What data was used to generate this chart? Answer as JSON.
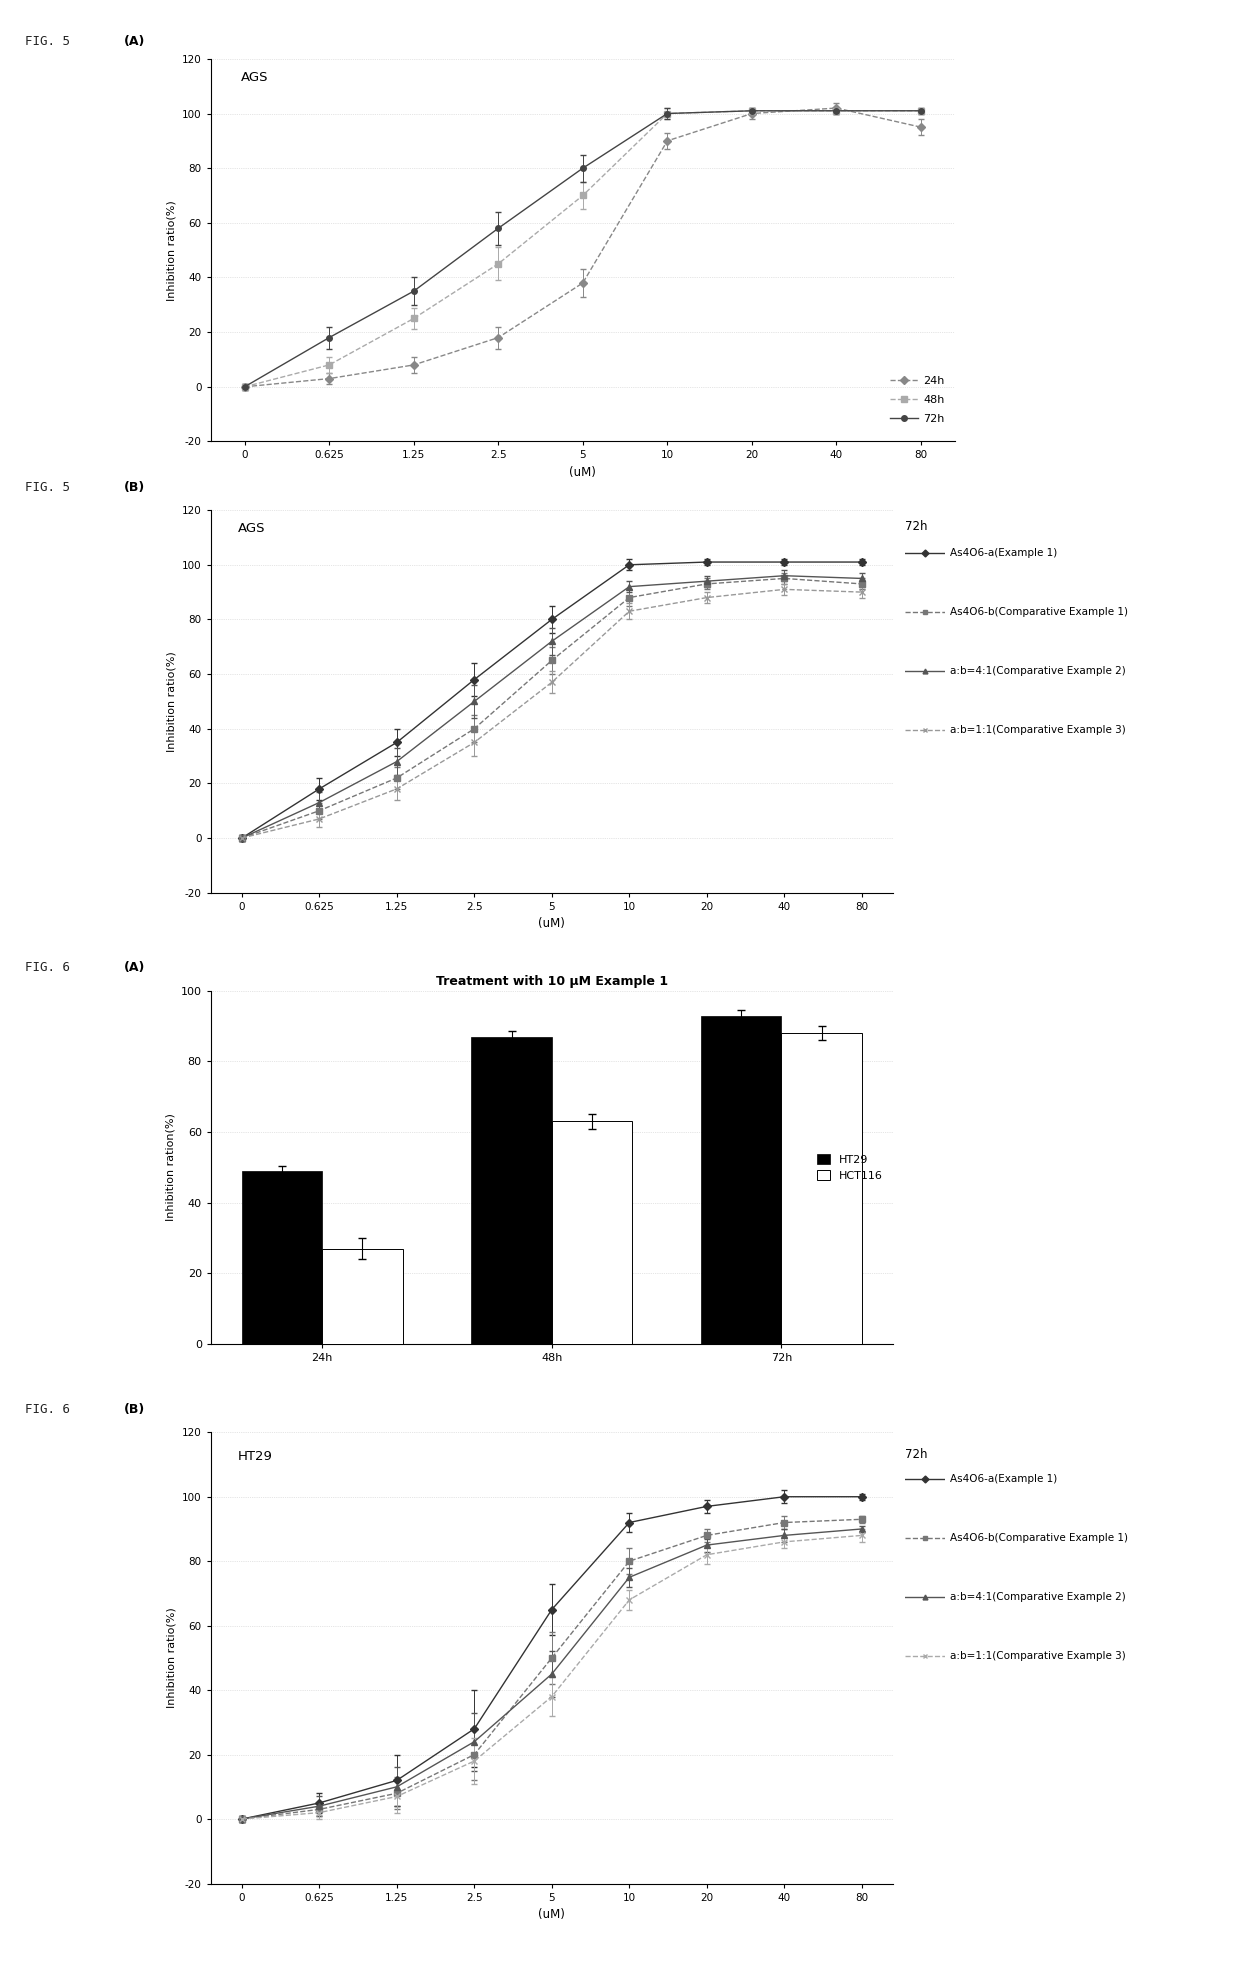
{
  "fig5a": {
    "title": "AGS",
    "xlabel": "(uM)",
    "ylabel": "Inhibition ratio(%)",
    "x_labels": [
      "0",
      "0.625",
      "1.25",
      "2.5",
      "5",
      "10",
      "20",
      "40",
      "80"
    ],
    "ylim": [
      -20,
      120
    ],
    "yticks": [
      -20,
      0,
      20,
      40,
      60,
      80,
      100,
      120
    ],
    "series": {
      "24h": {
        "y": [
          0,
          3,
          8,
          18,
          38,
          90,
          100,
          102,
          95
        ],
        "yerr": [
          1,
          2,
          3,
          4,
          5,
          3,
          2,
          2,
          3
        ],
        "color": "#888888",
        "marker": "D",
        "linestyle": "--",
        "ms": 4
      },
      "48h": {
        "y": [
          0,
          8,
          25,
          45,
          70,
          100,
          101,
          101,
          101
        ],
        "yerr": [
          1,
          3,
          4,
          6,
          5,
          2,
          1,
          1,
          1
        ],
        "color": "#aaaaaa",
        "marker": "s",
        "linestyle": "--",
        "ms": 4
      },
      "72h": {
        "y": [
          0,
          18,
          35,
          58,
          80,
          100,
          101,
          101,
          101
        ],
        "yerr": [
          1,
          4,
          5,
          6,
          5,
          2,
          1,
          1,
          1
        ],
        "color": "#444444",
        "marker": "o",
        "linestyle": "-",
        "ms": 4
      }
    }
  },
  "fig5b": {
    "title": "AGS",
    "subtitle": "72h",
    "xlabel": "(uM)",
    "ylabel": "Inhibition ratio(%)",
    "x_labels": [
      "0",
      "0.625",
      "1.25",
      "2.5",
      "5",
      "10",
      "20",
      "40",
      "80"
    ],
    "ylim": [
      -20,
      120
    ],
    "yticks": [
      -20,
      0,
      20,
      40,
      60,
      80,
      100,
      120
    ],
    "series": {
      "As4O6-a(Example 1)": {
        "y": [
          0,
          18,
          35,
          58,
          80,
          100,
          101,
          101,
          101
        ],
        "yerr": [
          1,
          4,
          5,
          6,
          5,
          2,
          1,
          1,
          1
        ],
        "color": "#333333",
        "marker": "D",
        "linestyle": "-",
        "ms": 4
      },
      "As4O6-b(Comparative Example 1)": {
        "y": [
          0,
          10,
          22,
          40,
          65,
          88,
          93,
          95,
          93
        ],
        "yerr": [
          1,
          3,
          4,
          5,
          5,
          3,
          2,
          2,
          2
        ],
        "color": "#777777",
        "marker": "s",
        "linestyle": "--",
        "ms": 4
      },
      "a:b=4:1(Comparative Example 2)": {
        "y": [
          0,
          13,
          28,
          50,
          72,
          92,
          94,
          96,
          95
        ],
        "yerr": [
          1,
          4,
          5,
          6,
          5,
          2,
          2,
          2,
          2
        ],
        "color": "#555555",
        "marker": "^",
        "linestyle": "-",
        "ms": 4
      },
      "a:b=1:1(Comparative Example 3)": {
        "y": [
          0,
          7,
          18,
          35,
          57,
          83,
          88,
          91,
          90
        ],
        "yerr": [
          1,
          3,
          4,
          5,
          4,
          3,
          2,
          2,
          2
        ],
        "color": "#999999",
        "marker": "x",
        "linestyle": "--",
        "ms": 4
      }
    }
  },
  "fig6a": {
    "title": "Treatment with 10 μM Example 1",
    "xlabel": "",
    "ylabel": "Inhibition ration(%)",
    "categories": [
      "24h",
      "48h",
      "72h"
    ],
    "ht29": [
      49,
      87,
      93
    ],
    "ht29_err": [
      1.5,
      1.5,
      1.5
    ],
    "hct116": [
      27,
      63,
      88
    ],
    "hct116_err": [
      3,
      2,
      2
    ],
    "ylim": [
      0,
      100
    ],
    "yticks": [
      0,
      20,
      40,
      60,
      80,
      100
    ],
    "ht29_color": "#000000",
    "hct116_color": "#ffffff",
    "bar_width": 0.35
  },
  "fig6b": {
    "title": "HT29",
    "subtitle": "72h",
    "xlabel": "(uM)",
    "ylabel": "Inhibition ratio(%)",
    "x_labels": [
      "0",
      "0.625",
      "1.25",
      "2.5",
      "5",
      "10",
      "20",
      "40",
      "80"
    ],
    "ylim": [
      -20,
      120
    ],
    "yticks": [
      -20,
      0,
      20,
      40,
      60,
      80,
      100,
      120
    ],
    "series": {
      "As4O6-a(Example 1)": {
        "y": [
          0,
          5,
          12,
          28,
          65,
          92,
          97,
          100,
          100
        ],
        "yerr": [
          1,
          3,
          8,
          12,
          8,
          3,
          2,
          2,
          1
        ],
        "color": "#333333",
        "marker": "D",
        "linestyle": "-",
        "ms": 4
      },
      "As4O6-b(Comparative Example 1)": {
        "y": [
          0,
          3,
          8,
          20,
          50,
          80,
          88,
          92,
          93
        ],
        "yerr": [
          1,
          2,
          5,
          8,
          8,
          4,
          2,
          2,
          1
        ],
        "color": "#777777",
        "marker": "s",
        "linestyle": "--",
        "ms": 4
      },
      "a:b=4:1(Comparative Example 2)": {
        "y": [
          0,
          4,
          10,
          24,
          45,
          75,
          85,
          88,
          90
        ],
        "yerr": [
          1,
          3,
          6,
          9,
          7,
          3,
          2,
          2,
          1
        ],
        "color": "#555555",
        "marker": "^",
        "linestyle": "-",
        "ms": 4
      },
      "a:b=1:1(Comparative Example 3)": {
        "y": [
          0,
          2,
          7,
          18,
          38,
          68,
          82,
          86,
          88
        ],
        "yerr": [
          1,
          2,
          5,
          7,
          6,
          3,
          3,
          2,
          2
        ],
        "color": "#aaaaaa",
        "marker": "x",
        "linestyle": "--",
        "ms": 4
      }
    }
  },
  "fig_bg_color": "#ffffff",
  "grid_color": "#cccccc",
  "grid_style": ":"
}
